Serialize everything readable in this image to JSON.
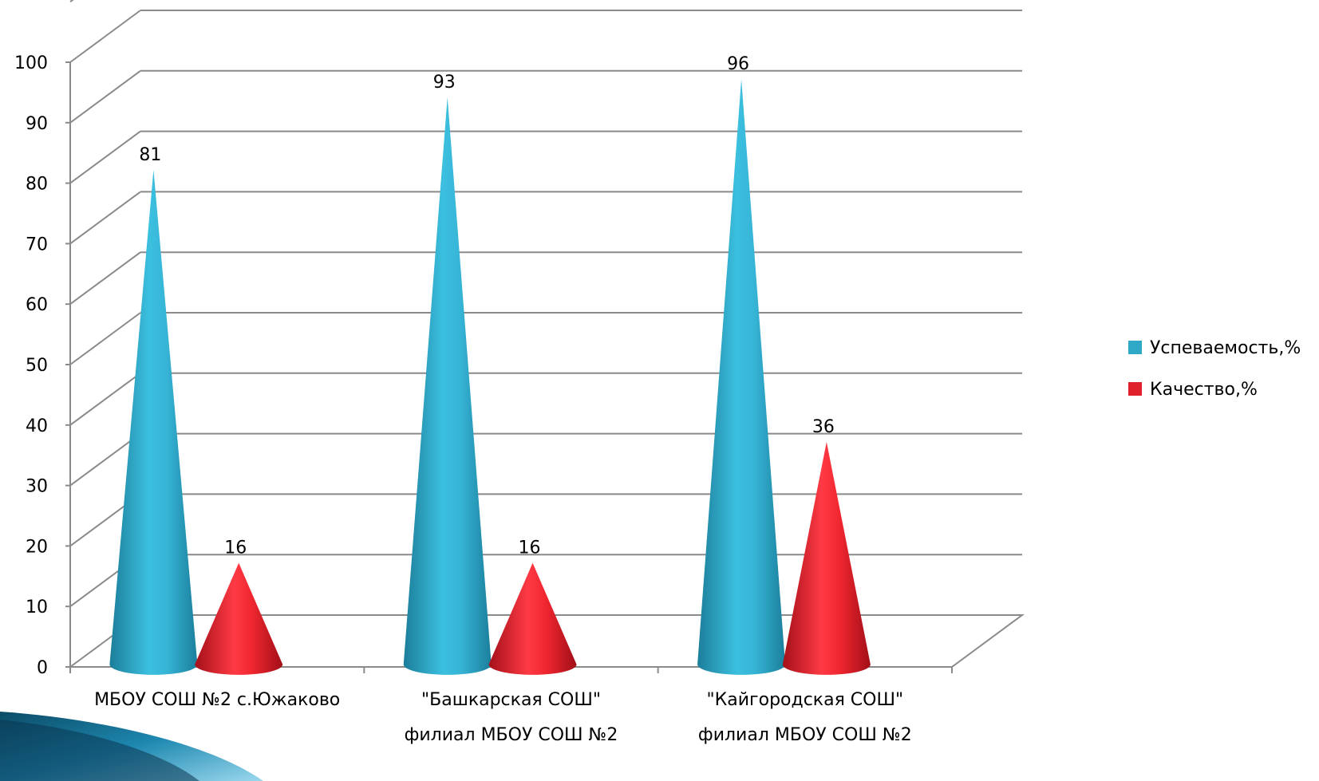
{
  "chart_data": {
    "type": "bar",
    "style": "3d-cone",
    "categories": [
      [
        "МБОУ СОШ №2 с.Южаково"
      ],
      [
        "\"Башкарская СОШ\"",
        "филиал МБОУ СОШ №2"
      ],
      [
        "\"Кайгородская СОШ\"",
        "филиал МБОУ СОШ №2"
      ]
    ],
    "series": [
      {
        "name": "Успеваемость,%",
        "color": "#2fa8c8",
        "values": [
          81,
          93,
          96
        ]
      },
      {
        "name": "Качество,%",
        "color": "#e0202a",
        "values": [
          16,
          16,
          36
        ]
      }
    ],
    "ylim": [
      0,
      100
    ],
    "yticks": [
      0,
      10,
      20,
      30,
      40,
      50,
      60,
      70,
      80,
      90,
      100
    ],
    "grid": true,
    "legend": "right",
    "data_labels": true
  }
}
